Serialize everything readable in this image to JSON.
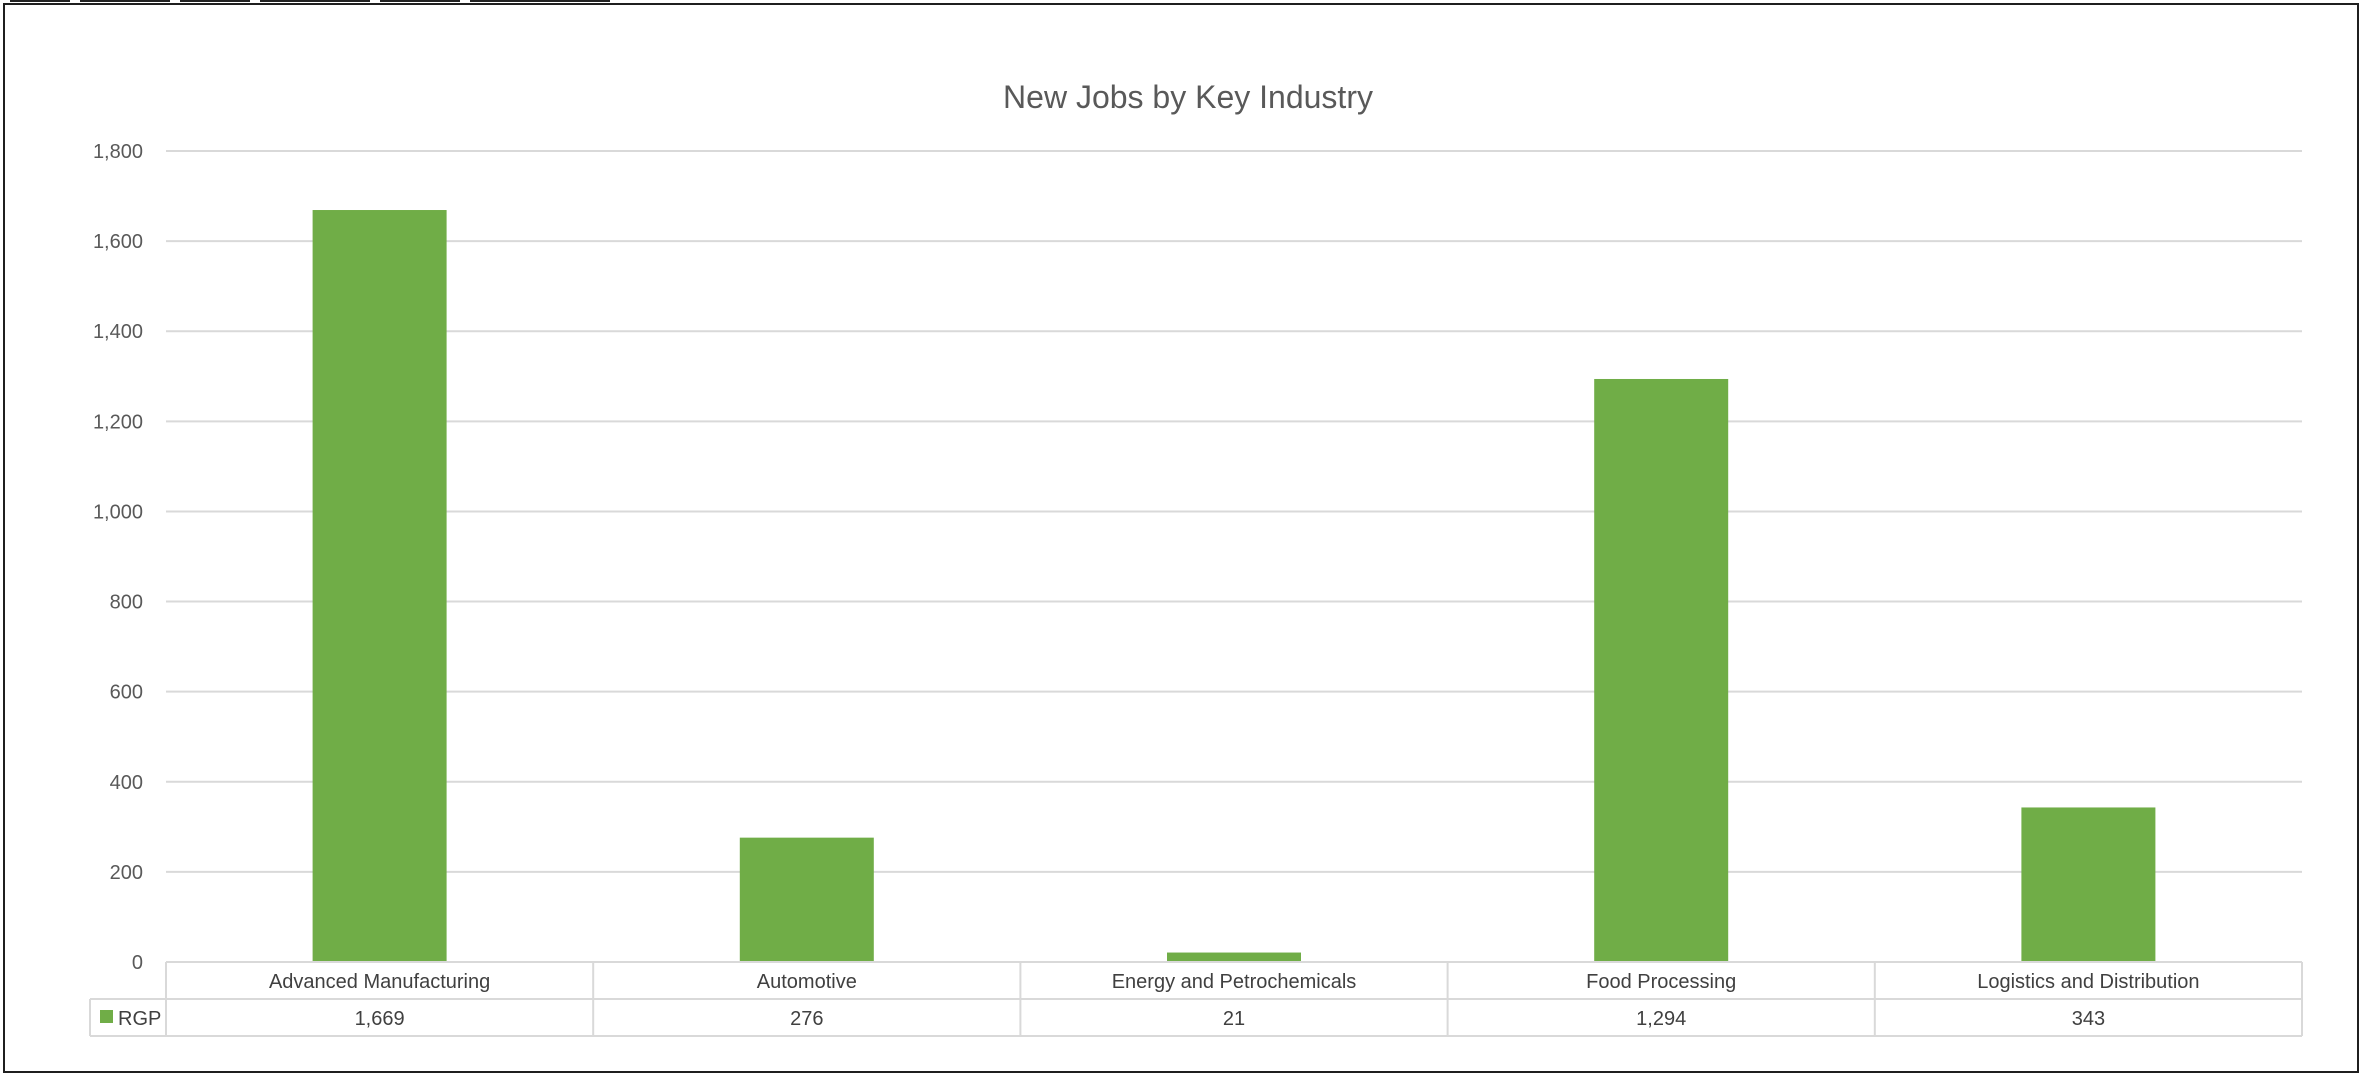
{
  "chart_data": {
    "type": "bar",
    "title": "New Jobs by Key Industry",
    "categories": [
      "Advanced Manufacturing",
      "Automotive",
      "Energy and Petrochemicals",
      "Food Processing",
      "Logistics and Distribution"
    ],
    "series": [
      {
        "name": "RGP",
        "values": [
          1669,
          276,
          21,
          1294,
          343
        ],
        "color": "#70AD47"
      }
    ],
    "data_table_values": [
      "1,669",
      "276",
      "21",
      "1,294",
      "343"
    ],
    "ylim": [
      0,
      1800
    ],
    "yticks": [
      0,
      200,
      400,
      600,
      800,
      1000,
      1200,
      1400,
      1600,
      1800
    ],
    "ytick_labels": [
      "0",
      "200",
      "400",
      "600",
      "800",
      "1,000",
      "1,200",
      "1,400",
      "1,600",
      "1,800"
    ],
    "grid": true,
    "legend": "data-table",
    "xlabel": "",
    "ylabel": ""
  }
}
